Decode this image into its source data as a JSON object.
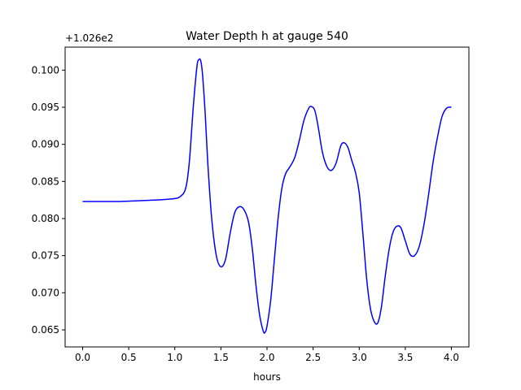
{
  "chart_data": {
    "type": "line",
    "title": "Water Depth h at gauge 540",
    "xlabel": "hours",
    "ylabel": "",
    "offset_label": "+1.026e2",
    "xlim": [
      -0.19,
      4.19
    ],
    "ylim": [
      0.0627,
      0.1031
    ],
    "xticks": [
      0.0,
      0.5,
      1.0,
      1.5,
      2.0,
      2.5,
      3.0,
      3.5,
      4.0
    ],
    "xtick_labels": [
      "0.0",
      "0.5",
      "1.0",
      "1.5",
      "2.0",
      "2.5",
      "3.0",
      "3.5",
      "4.0"
    ],
    "yticks": [
      0.065,
      0.07,
      0.075,
      0.08,
      0.085,
      0.09,
      0.095,
      0.1
    ],
    "ytick_labels": [
      "0.065",
      "0.070",
      "0.075",
      "0.080",
      "0.085",
      "0.090",
      "0.095",
      "0.100"
    ],
    "grid": false,
    "line_color": "#0000ff",
    "series": [
      {
        "x": [
          0.0,
          0.2,
          0.4,
          0.6,
          0.8,
          1.0,
          1.05,
          1.1,
          1.13,
          1.16,
          1.2,
          1.24,
          1.26,
          1.28,
          1.3,
          1.33,
          1.36,
          1.4,
          1.45,
          1.5,
          1.55,
          1.6,
          1.65,
          1.7,
          1.75,
          1.8,
          1.84,
          1.88,
          1.92,
          1.96,
          1.98,
          2.0,
          2.04,
          2.08,
          2.12,
          2.16,
          2.2,
          2.25,
          2.3,
          2.35,
          2.4,
          2.45,
          2.48,
          2.52,
          2.56,
          2.6,
          2.65,
          2.7,
          2.75,
          2.8,
          2.84,
          2.88,
          2.92,
          2.96,
          3.0,
          3.04,
          3.08,
          3.12,
          3.16,
          3.2,
          3.24,
          3.28,
          3.32,
          3.36,
          3.4,
          3.45,
          3.5,
          3.55,
          3.6,
          3.65,
          3.7,
          3.75,
          3.8,
          3.85,
          3.9,
          3.95,
          4.0
        ],
        "y": [
          0.0823,
          0.0823,
          0.0823,
          0.0824,
          0.0825,
          0.0827,
          0.0829,
          0.0835,
          0.0848,
          0.088,
          0.095,
          0.1005,
          0.1014,
          0.1013,
          0.0995,
          0.094,
          0.087,
          0.08,
          0.075,
          0.0735,
          0.0745,
          0.078,
          0.0808,
          0.0816,
          0.0812,
          0.0795,
          0.076,
          0.071,
          0.067,
          0.0648,
          0.0647,
          0.0655,
          0.069,
          0.0745,
          0.08,
          0.084,
          0.086,
          0.087,
          0.0882,
          0.0905,
          0.0932,
          0.0948,
          0.0951,
          0.0945,
          0.092,
          0.089,
          0.087,
          0.0865,
          0.0875,
          0.0898,
          0.0902,
          0.0895,
          0.0878,
          0.0862,
          0.0835,
          0.078,
          0.072,
          0.068,
          0.0662,
          0.0659,
          0.068,
          0.072,
          0.0755,
          0.0779,
          0.0789,
          0.0788,
          0.077,
          0.0752,
          0.075,
          0.0762,
          0.079,
          0.083,
          0.0875,
          0.091,
          0.0938,
          0.0949,
          0.095
        ]
      }
    ]
  }
}
